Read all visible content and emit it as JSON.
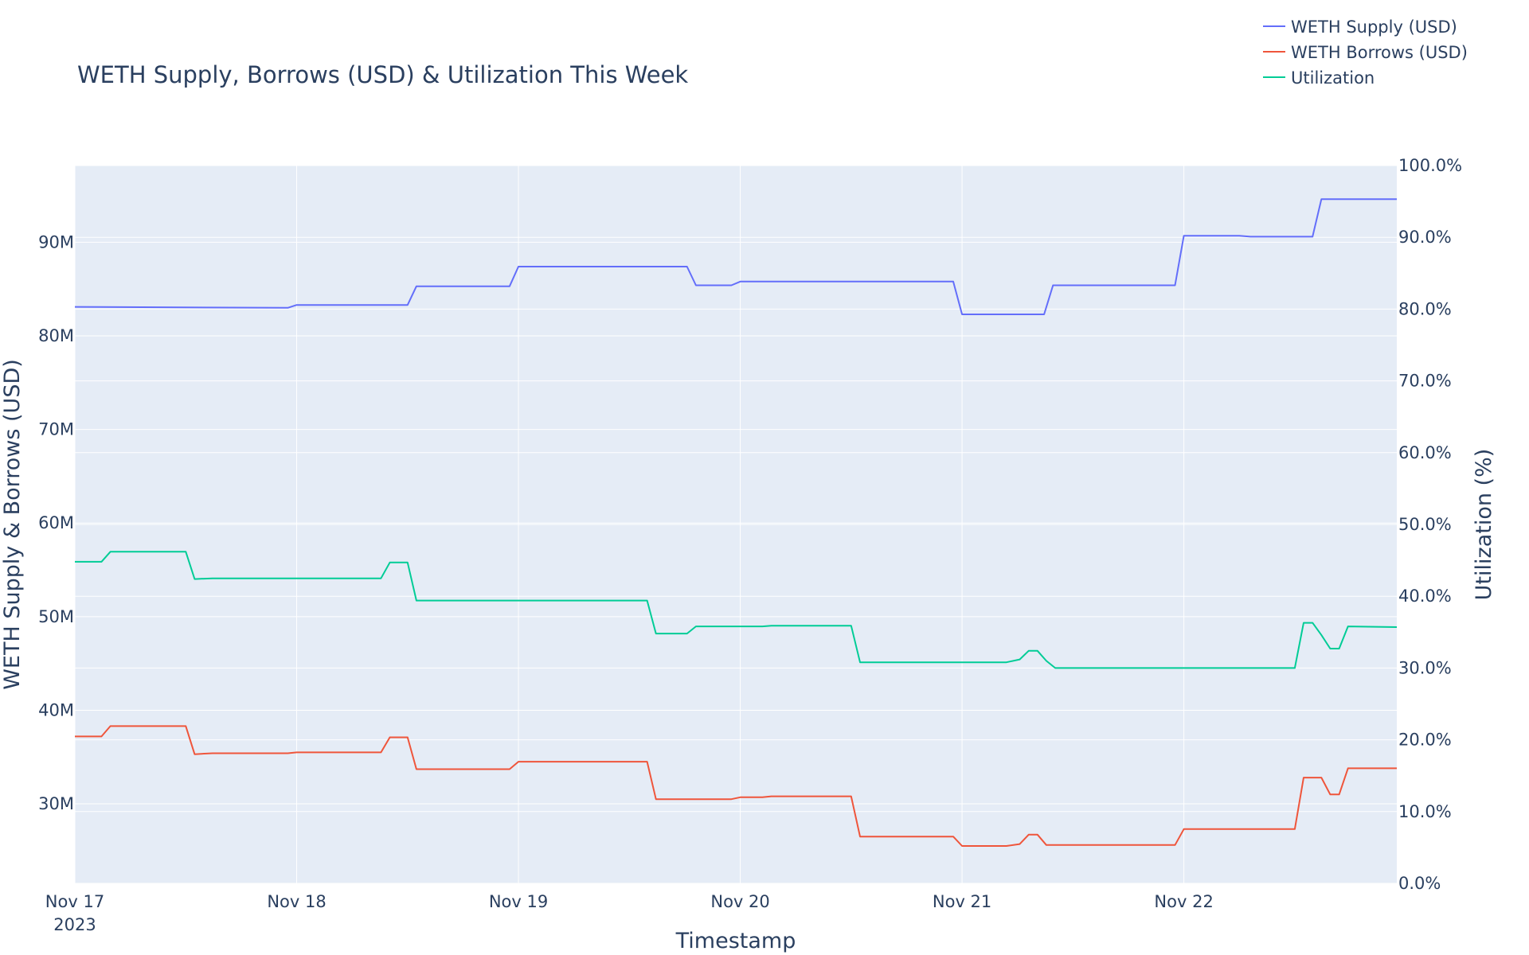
{
  "chart_data": {
    "type": "line",
    "title": "WETH Supply, Borrows (USD) & Utilization This Week",
    "xlabel": "Timestamp",
    "ylabel": "WETH Supply & Borrows (USD)",
    "y2label": "Utilization (%)",
    "x_ticks": [
      {
        "label": "Nov 17",
        "sub": "2023",
        "day": 0
      },
      {
        "label": "Nov 18",
        "sub": "",
        "day": 1
      },
      {
        "label": "Nov 19",
        "sub": "",
        "day": 2
      },
      {
        "label": "Nov 20",
        "sub": "",
        "day": 3
      },
      {
        "label": "Nov 21",
        "sub": "",
        "day": 4
      },
      {
        "label": "Nov 22",
        "sub": "",
        "day": 5
      }
    ],
    "xlim_days": [
      0,
      5.96
    ],
    "ylim": [
      21.5,
      98.2
    ],
    "y_ticks": [
      {
        "value": 30,
        "label": "30M"
      },
      {
        "value": 40,
        "label": "40M"
      },
      {
        "value": 50,
        "label": "50M"
      },
      {
        "value": 60,
        "label": "60M"
      },
      {
        "value": 70,
        "label": "70M"
      },
      {
        "value": 80,
        "label": "80M"
      },
      {
        "value": 90,
        "label": "90M"
      }
    ],
    "y2lim": [
      0,
      100
    ],
    "y2_ticks": [
      {
        "value": 0,
        "label": "0.0%"
      },
      {
        "value": 10,
        "label": "10.0%"
      },
      {
        "value": 20,
        "label": "20.0%"
      },
      {
        "value": 30,
        "label": "30.0%"
      },
      {
        "value": 40,
        "label": "40.0%"
      },
      {
        "value": 50,
        "label": "50.0%"
      },
      {
        "value": 60,
        "label": "60.0%"
      },
      {
        "value": 70,
        "label": "70.0%"
      },
      {
        "value": 80,
        "label": "80.0%"
      },
      {
        "value": 90,
        "label": "90.0%"
      },
      {
        "value": 100,
        "label": "100.0%"
      }
    ],
    "grid": true,
    "legend_position": "top-right",
    "colors": {
      "plot_bg": "#e5ecf6",
      "grid": "#ffffff",
      "text": "#2a3f5f"
    },
    "series": [
      {
        "name": "WETH Supply (USD)",
        "axis": "left",
        "color": "#636efa",
        "unit": "M",
        "x": [
          0,
          0.96,
          1.0,
          1.5,
          1.54,
          1.96,
          2.0,
          2.76,
          2.8,
          2.96,
          3.0,
          3.96,
          4.0,
          4.37,
          4.41,
          4.96,
          5.0,
          5.25,
          5.3,
          5.58,
          5.62,
          5.96
        ],
        "y": [
          83.1,
          83.0,
          83.3,
          83.3,
          85.3,
          85.3,
          87.4,
          87.4,
          85.4,
          85.4,
          85.8,
          85.8,
          82.3,
          82.3,
          85.4,
          85.4,
          90.7,
          90.7,
          90.6,
          90.6,
          94.6,
          94.6
        ]
      },
      {
        "name": "WETH Borrows (USD)",
        "axis": "left",
        "color": "#ef553b",
        "unit": "M",
        "x": [
          0,
          0.12,
          0.16,
          0.5,
          0.54,
          0.62,
          0.96,
          1.0,
          1.38,
          1.42,
          1.5,
          1.54,
          1.96,
          2.0,
          2.58,
          2.62,
          2.96,
          3.0,
          3.1,
          3.14,
          3.5,
          3.54,
          3.96,
          4.0,
          4.2,
          4.26,
          4.3,
          4.34,
          4.38,
          4.96,
          5.0,
          5.5,
          5.54,
          5.62,
          5.66,
          5.7,
          5.74,
          5.96
        ],
        "y": [
          37.2,
          37.2,
          38.3,
          38.3,
          35.3,
          35.4,
          35.4,
          35.5,
          35.5,
          37.1,
          37.1,
          33.7,
          33.7,
          34.5,
          34.5,
          30.5,
          30.5,
          30.7,
          30.7,
          30.8,
          30.8,
          26.5,
          26.5,
          25.5,
          25.5,
          25.7,
          26.7,
          26.7,
          25.6,
          25.6,
          27.3,
          27.3,
          32.8,
          32.8,
          31.0,
          31.0,
          33.8,
          33.8
        ]
      },
      {
        "name": "Utilization",
        "axis": "right",
        "color": "#00cc96",
        "unit": "%",
        "x": [
          0,
          0.12,
          0.16,
          0.5,
          0.54,
          0.62,
          1.38,
          1.42,
          1.5,
          1.54,
          2.58,
          2.62,
          2.76,
          2.8,
          3.1,
          3.14,
          3.5,
          3.54,
          4.2,
          4.26,
          4.3,
          4.34,
          4.38,
          4.42,
          5.5,
          5.54,
          5.58,
          5.62,
          5.66,
          5.7,
          5.74,
          5.96
        ],
        "y": [
          44.8,
          44.8,
          46.2,
          46.2,
          42.4,
          42.5,
          42.5,
          44.7,
          44.7,
          39.4,
          39.4,
          34.8,
          34.8,
          35.8,
          35.8,
          35.9,
          35.9,
          30.8,
          30.8,
          31.2,
          32.4,
          32.4,
          31.0,
          30.0,
          30.0,
          36.3,
          36.3,
          34.6,
          32.7,
          32.7,
          35.8,
          35.7
        ]
      }
    ]
  }
}
